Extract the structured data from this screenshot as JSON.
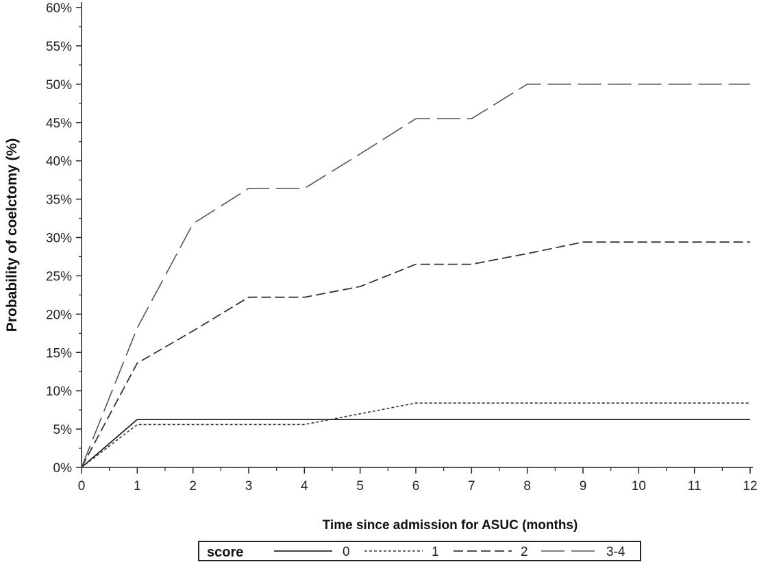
{
  "chart_data": {
    "type": "line",
    "title": "",
    "xlabel": "Time since admission for ASUC (months)",
    "ylabel": "Probability of coelctomy (%)",
    "xlim": [
      0,
      12
    ],
    "ylim": [
      0,
      60
    ],
    "x_ticks": [
      0,
      1,
      2,
      3,
      4,
      5,
      6,
      7,
      8,
      9,
      10,
      11,
      12
    ],
    "x_tick_labels": [
      "0",
      "1",
      "2",
      "3",
      "4",
      "5",
      "6",
      "7",
      "8",
      "9",
      "10",
      "11",
      "12"
    ],
    "y_ticks": [
      0,
      5,
      10,
      15,
      20,
      25,
      30,
      35,
      40,
      45,
      50,
      55,
      60
    ],
    "y_tick_labels": [
      "0%",
      "5%",
      "10%",
      "15%",
      "20%",
      "25%",
      "30%",
      "35%",
      "40%",
      "45%",
      "50%",
      "55%",
      "60%"
    ],
    "grid": false,
    "legend_title": "score",
    "legend_position": "bottom",
    "series": [
      {
        "name": "0",
        "dash": "solid",
        "color": "#222222",
        "x": [
          0,
          1,
          12
        ],
        "y": [
          0,
          6.25,
          6.25
        ]
      },
      {
        "name": "1",
        "dash": "dotted",
        "color": "#333333",
        "x": [
          0,
          1,
          4,
          6,
          12
        ],
        "y": [
          0,
          5.6,
          5.6,
          8.4,
          8.4
        ]
      },
      {
        "name": "2",
        "dash": "dashed",
        "color": "#333333",
        "x": [
          0,
          1,
          2,
          3,
          4,
          5,
          6,
          7,
          8,
          9,
          12
        ],
        "y": [
          0,
          13.6,
          17.8,
          22.2,
          22.2,
          23.6,
          26.5,
          26.5,
          27.9,
          29.4,
          29.4
        ]
      },
      {
        "name": "3-4",
        "dash": "longdash",
        "color": "#555555",
        "x": [
          0,
          1,
          2,
          3,
          4,
          5,
          6,
          7,
          8,
          12
        ],
        "y": [
          0,
          18.2,
          31.8,
          36.4,
          36.4,
          40.9,
          45.5,
          45.5,
          50,
          50
        ]
      }
    ]
  }
}
